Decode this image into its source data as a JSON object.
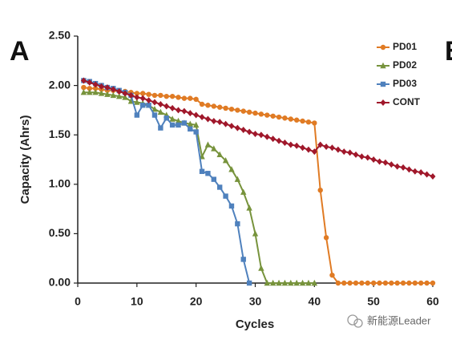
{
  "panel_label": "A",
  "next_panel_label": "B",
  "watermark": "新能源Leader",
  "chart_data": {
    "type": "line",
    "xlabel": "Cycles",
    "ylabel": "Capacity (Ahrs)",
    "x": [
      1,
      2,
      3,
      4,
      5,
      6,
      7,
      8,
      9,
      10,
      11,
      12,
      13,
      14,
      15,
      16,
      17,
      18,
      19,
      20,
      21,
      22,
      23,
      24,
      25,
      26,
      27,
      28,
      29,
      30,
      31,
      32,
      33,
      34,
      35,
      36,
      37,
      38,
      39,
      40,
      41,
      42,
      43,
      44,
      45,
      46,
      47,
      48,
      49,
      50,
      51,
      52,
      53,
      54,
      55,
      56,
      57,
      58,
      59,
      60
    ],
    "xlim": [
      0,
      60
    ],
    "xticks": [
      0,
      10,
      20,
      30,
      40,
      50,
      60
    ],
    "ylim": [
      0,
      2.5
    ],
    "yticks": [
      {
        "value": 0,
        "label": "0.00"
      },
      {
        "value": 0.5,
        "label": "0.50"
      },
      {
        "value": 1,
        "label": "1.00"
      },
      {
        "value": 1.5,
        "label": "1.50"
      },
      {
        "value": 2,
        "label": "2.00"
      },
      {
        "value": 2.5,
        "label": "2.50"
      }
    ],
    "legend": "upper right",
    "series": [
      {
        "name": "PD01",
        "color": "#e07b24",
        "marker": "circle",
        "values": [
          1.98,
          1.97,
          1.97,
          1.96,
          1.95,
          1.95,
          1.94,
          1.94,
          1.93,
          1.92,
          1.92,
          1.91,
          1.9,
          1.9,
          1.89,
          1.89,
          1.88,
          1.87,
          1.87,
          1.86,
          1.81,
          1.8,
          1.79,
          1.78,
          1.77,
          1.76,
          1.75,
          1.74,
          1.73,
          1.72,
          1.71,
          1.7,
          1.69,
          1.68,
          1.67,
          1.66,
          1.65,
          1.64,
          1.63,
          1.62,
          0.94,
          0.46,
          0.08,
          0,
          0,
          0,
          0,
          0,
          0,
          0,
          0,
          0,
          0,
          0,
          0,
          0,
          0,
          0,
          0,
          0
        ]
      },
      {
        "name": "PD02",
        "color": "#77933c",
        "marker": "triangle",
        "values": [
          1.93,
          1.93,
          1.93,
          1.92,
          1.91,
          1.9,
          1.89,
          1.88,
          1.84,
          1.83,
          1.82,
          1.8,
          1.76,
          1.73,
          1.7,
          1.66,
          1.64,
          1.62,
          1.61,
          1.6,
          1.28,
          1.4,
          1.36,
          1.3,
          1.24,
          1.15,
          1.05,
          0.92,
          0.76,
          0.5,
          0.15,
          0,
          0,
          0,
          0,
          0,
          0,
          0,
          0,
          0,
          null,
          null,
          null,
          null,
          null,
          null,
          null,
          null,
          null,
          null,
          null,
          null,
          null,
          null,
          null,
          null,
          null,
          null,
          null,
          null
        ]
      },
      {
        "name": "PD03",
        "color": "#4f81bd",
        "marker": "square",
        "values": [
          2.05,
          2.04,
          2.02,
          2.0,
          1.98,
          1.97,
          1.95,
          1.93,
          1.9,
          1.7,
          1.8,
          1.8,
          1.7,
          1.57,
          1.67,
          1.6,
          1.6,
          1.62,
          1.56,
          1.53,
          1.13,
          1.11,
          1.05,
          0.97,
          0.88,
          0.78,
          0.6,
          0.24,
          0,
          null,
          null,
          null,
          null,
          null,
          null,
          null,
          null,
          null,
          null,
          null,
          null,
          null,
          null,
          null,
          null,
          null,
          null,
          null,
          null,
          null,
          null,
          null,
          null,
          null,
          null,
          null,
          null,
          null,
          null,
          null
        ]
      },
      {
        "name": "CONT",
        "color": "#a0182b",
        "marker": "diamond",
        "values": [
          2.05,
          2.03,
          2.01,
          1.99,
          1.98,
          1.96,
          1.94,
          1.92,
          1.9,
          1.88,
          1.87,
          1.85,
          1.83,
          1.81,
          1.79,
          1.77,
          1.75,
          1.74,
          1.72,
          1.7,
          1.68,
          1.66,
          1.64,
          1.63,
          1.61,
          1.59,
          1.57,
          1.55,
          1.53,
          1.51,
          1.5,
          1.48,
          1.46,
          1.44,
          1.42,
          1.4,
          1.39,
          1.37,
          1.35,
          1.33,
          1.4,
          1.38,
          1.37,
          1.35,
          1.33,
          1.32,
          1.3,
          1.28,
          1.27,
          1.25,
          1.23,
          1.22,
          1.2,
          1.18,
          1.17,
          1.15,
          1.13,
          1.12,
          1.1,
          1.08
        ]
      }
    ]
  }
}
